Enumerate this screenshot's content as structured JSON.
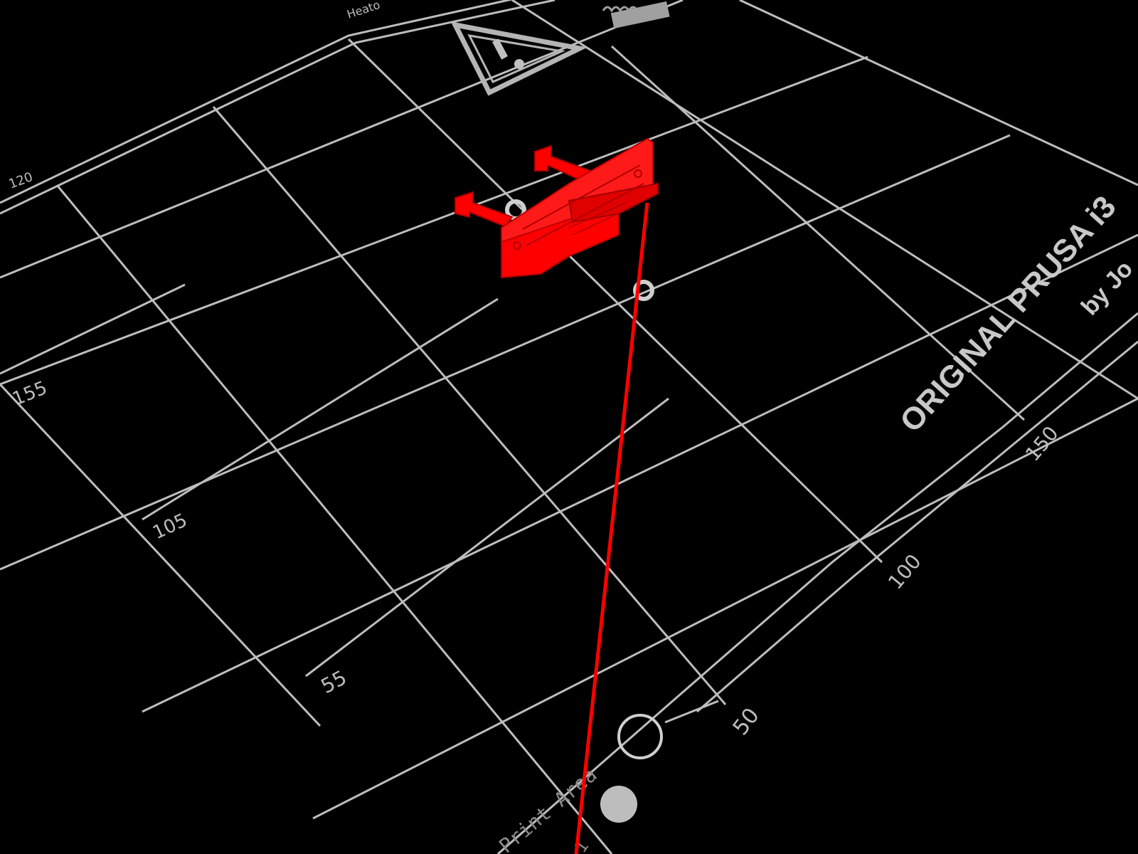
{
  "scene": {
    "background_color": "#000000",
    "grid_color": "#bdbdbd",
    "model_color": "#ff0000",
    "model_edge_color": "#b00000"
  },
  "bed": {
    "brand_line1": "ORIGINAL PRUSA i3",
    "brand_line2": "by Jo",
    "top_left_text": "Heato",
    "print_area_label": "Print Area",
    "axis_labels": {
      "left_120": "120",
      "left_155": "155",
      "left_105": "105",
      "left_55": "55",
      "right_150": "150",
      "right_100": "100",
      "right_50": "50",
      "bottom_1": "1"
    },
    "icons": {
      "warning": "warning-triangle-icon",
      "heat": "heat-bed-icon"
    }
  },
  "model": {
    "name": "red-printed-part"
  }
}
